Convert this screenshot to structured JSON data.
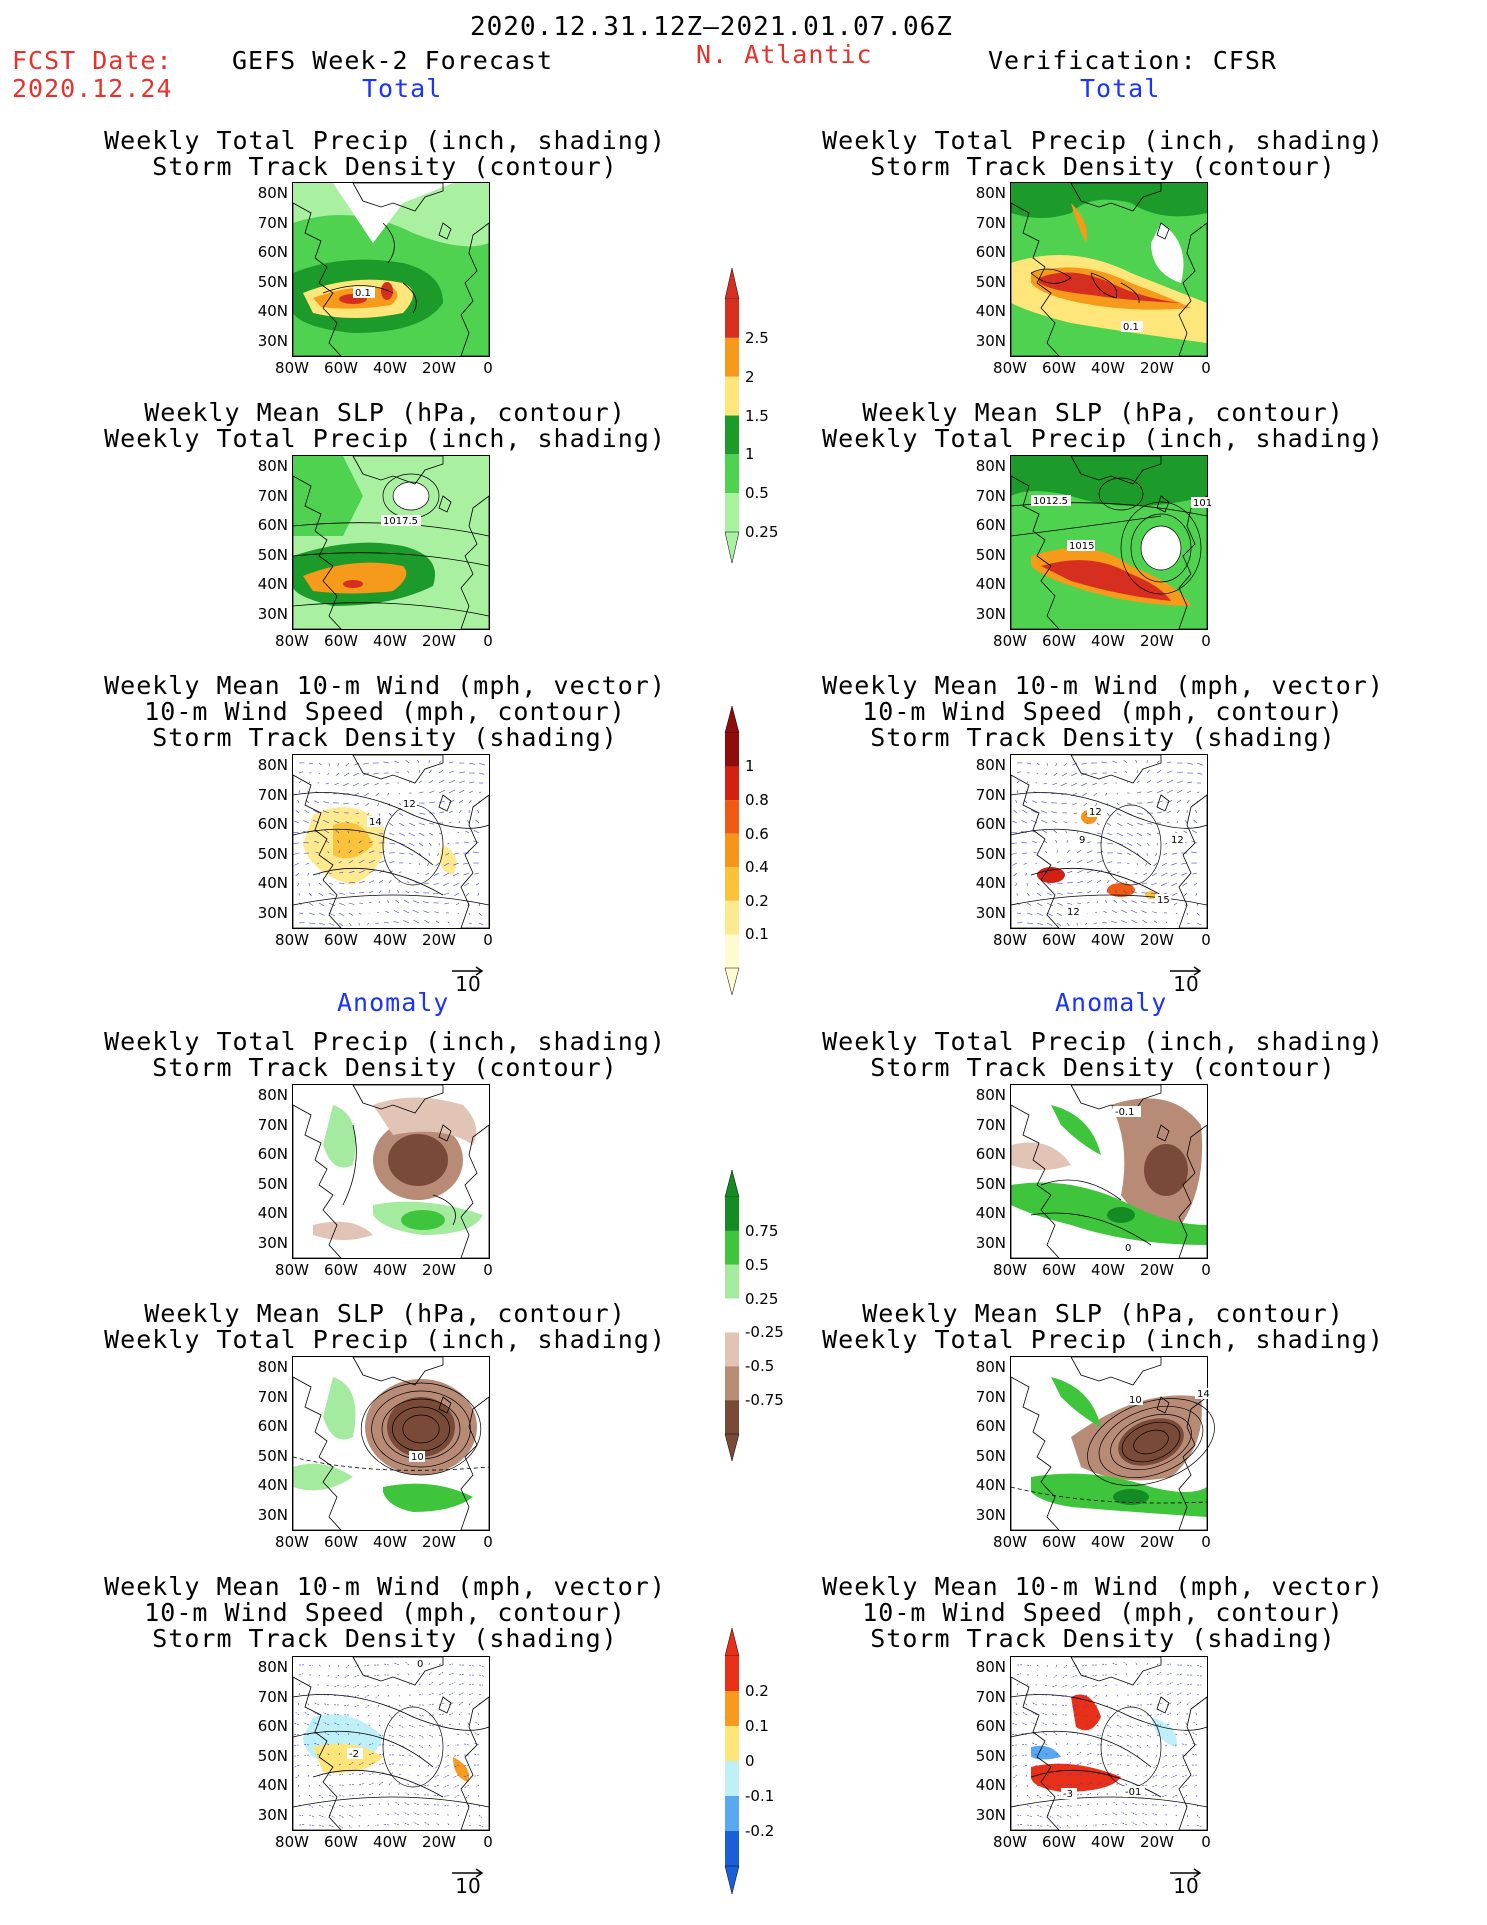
{
  "header": {
    "period": "2020.12.31.12Z–2021.01.07.06Z",
    "fcst_label": "FCST Date:",
    "fcst_date": "2020.12.24",
    "model_title": "GEFS Week-2 Forecast",
    "region": "N. Atlantic",
    "verification": "Verification: CFSR"
  },
  "sections": {
    "total": "Total",
    "anomaly": "Anomaly"
  },
  "titles": {
    "precip_track": [
      "Weekly Total Precip (inch, shading)",
      "Storm Track Density (contour)"
    ],
    "slp_precip": [
      "Weekly Mean SLP (hPa, contour)",
      "Weekly Total Precip (inch, shading)"
    ],
    "wind_track": [
      "Weekly Mean 10-m Wind (mph, vector)",
      "10-m Wind Speed (mph, contour)",
      "Storm Track Density (shading)"
    ]
  },
  "axes": {
    "lat_ticks": [
      "80N",
      "70N",
      "60N",
      "50N",
      "40N",
      "30N"
    ],
    "lon_ticks": [
      "80W",
      "60W",
      "40W",
      "20W",
      "0"
    ],
    "vector_ref": "10"
  },
  "colorbars": {
    "precip_total": {
      "labels": [
        "2.5",
        "2",
        "1.5",
        "1",
        "0.5",
        "0.25"
      ],
      "colors": [
        "#d62f1f",
        "#f59a1a",
        "#ffe67a",
        "#1c9a2a",
        "#4fd24f",
        "#a9f0a0"
      ]
    },
    "track_total": {
      "labels": [
        "1",
        "0.8",
        "0.6",
        "0.4",
        "0.2",
        "0.1"
      ],
      "colors": [
        "#8e0c0c",
        "#d42010",
        "#f05a12",
        "#f7951b",
        "#fbc33a",
        "#fde98e",
        "#fffbd1"
      ]
    },
    "precip_anom": {
      "labels": [
        "0.75",
        "0.5",
        "0.25",
        "-0.25",
        "-0.5",
        "-0.75"
      ],
      "colors": [
        "#158c23",
        "#3fc53c",
        "#a4eba0",
        "#ffffff",
        "#e2c4b6",
        "#b88b77",
        "#7a4a38"
      ]
    },
    "track_anom": {
      "labels": [
        "0.2",
        "0.1",
        "0",
        "-0.1",
        "-0.2"
      ],
      "colors": [
        "#e83018",
        "#f79a1e",
        "#fde57a",
        "#bff0f7",
        "#5aa8ef",
        "#1a5fd8"
      ]
    }
  },
  "contour_labels": {
    "l_precip": [
      "0.1"
    ],
    "r_precip": [
      "0.1"
    ],
    "l_slp": [
      "1017.5"
    ],
    "r_slp": [
      "1012.5",
      "1015",
      "101"
    ],
    "l_wind": [
      "14",
      "12"
    ],
    "r_wind": [
      "12",
      "9",
      "12",
      "15",
      "12"
    ],
    "r_precip_anom": [
      "-0.1",
      "0"
    ],
    "l_slp_anom": [
      "10"
    ],
    "r_slp_anom": [
      "10",
      "14"
    ],
    "l_wind_anom": [
      "0",
      "-2"
    ],
    "r_wind_anom": [
      "-3",
      "-01"
    ]
  },
  "colors": {
    "header_red": "#e8312b",
    "section_blue": "#1a33ff"
  }
}
